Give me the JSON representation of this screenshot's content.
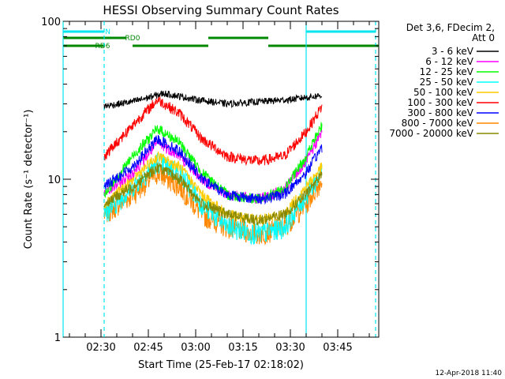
{
  "chart_data": {
    "type": "line",
    "title": "HESSI Observing Summary Count Rates",
    "xlabel": "Start Time (25-Feb-17 02:18:02)",
    "ylabel": "Count Rate (s⁻¹ detector⁻¹)",
    "yscale": "log",
    "ylim": [
      1,
      100
    ],
    "xlim": [
      "02:18",
      "03:58"
    ],
    "x_ticks": [
      "02:30",
      "02:45",
      "03:00",
      "03:15",
      "03:30",
      "03:45"
    ],
    "y_ticks": [
      "1",
      "10",
      "100"
    ],
    "legend_title": [
      "Det 3,6, FDecim 2,",
      "Att 0"
    ],
    "legend_position": "right",
    "data_start": "02:31",
    "data_end": "03:40",
    "series": [
      {
        "name": "3 - 6 keV",
        "color": "#000000",
        "x": [
          "02:31",
          "02:40",
          "02:50",
          "03:00",
          "03:10",
          "03:20",
          "03:30",
          "03:40"
        ],
        "values": [
          29,
          31,
          35,
          32,
          30,
          31,
          32,
          34
        ]
      },
      {
        "name": "6 - 12 keV",
        "color": "#ff00ff",
        "x": [
          "02:31",
          "02:40",
          "02:48",
          "02:55",
          "03:02",
          "03:10",
          "03:20",
          "03:28",
          "03:35",
          "03:40"
        ],
        "values": [
          8,
          11,
          17,
          14,
          10,
          8,
          7.5,
          8.5,
          13,
          20
        ]
      },
      {
        "name": "12 - 25 keV",
        "color": "#00ff00",
        "x": [
          "02:31",
          "02:40",
          "02:48",
          "02:55",
          "03:02",
          "03:10",
          "03:20",
          "03:28",
          "03:35",
          "03:40"
        ],
        "values": [
          8,
          14,
          21,
          17,
          11,
          8,
          7.5,
          8.5,
          14,
          22
        ]
      },
      {
        "name": "25 - 50 keV",
        "color": "#00ffff",
        "x": [
          "02:31",
          "02:40",
          "02:48",
          "02:55",
          "03:02",
          "03:10",
          "03:20",
          "03:28",
          "03:35",
          "03:40"
        ],
        "values": [
          6,
          9,
          13,
          11,
          7,
          5,
          4.5,
          5,
          8,
          11
        ]
      },
      {
        "name": "50 - 100 keV",
        "color": "#ffcc00",
        "x": [
          "02:31",
          "02:40",
          "02:48",
          "02:55",
          "03:02",
          "03:10",
          "03:20",
          "03:28",
          "03:35",
          "03:40"
        ],
        "values": [
          7,
          10,
          14,
          12,
          8,
          6,
          5.5,
          6,
          9,
          12
        ]
      },
      {
        "name": "100 - 300 keV",
        "color": "#ff0000",
        "x": [
          "02:31",
          "02:40",
          "02:48",
          "02:55",
          "03:02",
          "03:10",
          "03:20",
          "03:28",
          "03:35",
          "03:40"
        ],
        "values": [
          14,
          22,
          32,
          26,
          18,
          14,
          13,
          14,
          20,
          29
        ]
      },
      {
        "name": "300 - 800 keV",
        "color": "#0000ff",
        "x": [
          "02:31",
          "02:40",
          "02:48",
          "02:55",
          "03:02",
          "03:10",
          "03:20",
          "03:28",
          "03:35",
          "03:40"
        ],
        "values": [
          9,
          12,
          18,
          15,
          10,
          8,
          7.5,
          8,
          11,
          16
        ]
      },
      {
        "name": "800 - 7000 keV",
        "color": "#ff8800",
        "x": [
          "02:31",
          "02:40",
          "02:48",
          "02:55",
          "03:02",
          "03:10",
          "03:20",
          "03:28",
          "03:35",
          "03:40"
        ],
        "values": [
          6,
          8,
          11,
          9,
          6,
          5,
          4.5,
          5,
          7,
          10
        ]
      },
      {
        "name": "7000 - 20000 keV",
        "color": "#888800",
        "x": [
          "02:31",
          "02:40",
          "02:48",
          "02:55",
          "03:02",
          "03:10",
          "03:20",
          "03:28",
          "03:35",
          "03:40"
        ],
        "values": [
          7,
          9,
          12,
          10,
          7,
          6,
          5.5,
          6,
          8,
          11
        ]
      }
    ],
    "flag_bars": [
      {
        "name": "N",
        "label": "N",
        "color": "#00e5ee",
        "row": 1,
        "segments": [
          [
            "02:18",
            "02:31"
          ],
          [
            "03:35",
            "03:57"
          ]
        ]
      },
      {
        "name": "RD0",
        "label": "RD0",
        "color": "#008800",
        "row": 2,
        "segments": [
          [
            "02:18",
            "02:38"
          ],
          [
            "03:04",
            "03:23"
          ]
        ]
      },
      {
        "name": "RD6",
        "label": "RD6",
        "color": "#008800",
        "row": 3,
        "segments": [
          [
            "02:18",
            "02:31"
          ],
          [
            "02:40",
            "03:04"
          ],
          [
            "03:23",
            "03:58"
          ]
        ]
      }
    ],
    "vertical_lines": [
      {
        "x": "02:18",
        "color": "#00e5ee",
        "style": "solid"
      },
      {
        "x": "02:31",
        "color": "#00e5ee",
        "style": "dashed"
      },
      {
        "x": "03:35",
        "color": "#00e5ee",
        "style": "solid"
      },
      {
        "x": "03:57",
        "color": "#00e5ee",
        "style": "dashed"
      }
    ]
  },
  "footer": {
    "timestamp": "12-Apr-2018 11:40"
  }
}
